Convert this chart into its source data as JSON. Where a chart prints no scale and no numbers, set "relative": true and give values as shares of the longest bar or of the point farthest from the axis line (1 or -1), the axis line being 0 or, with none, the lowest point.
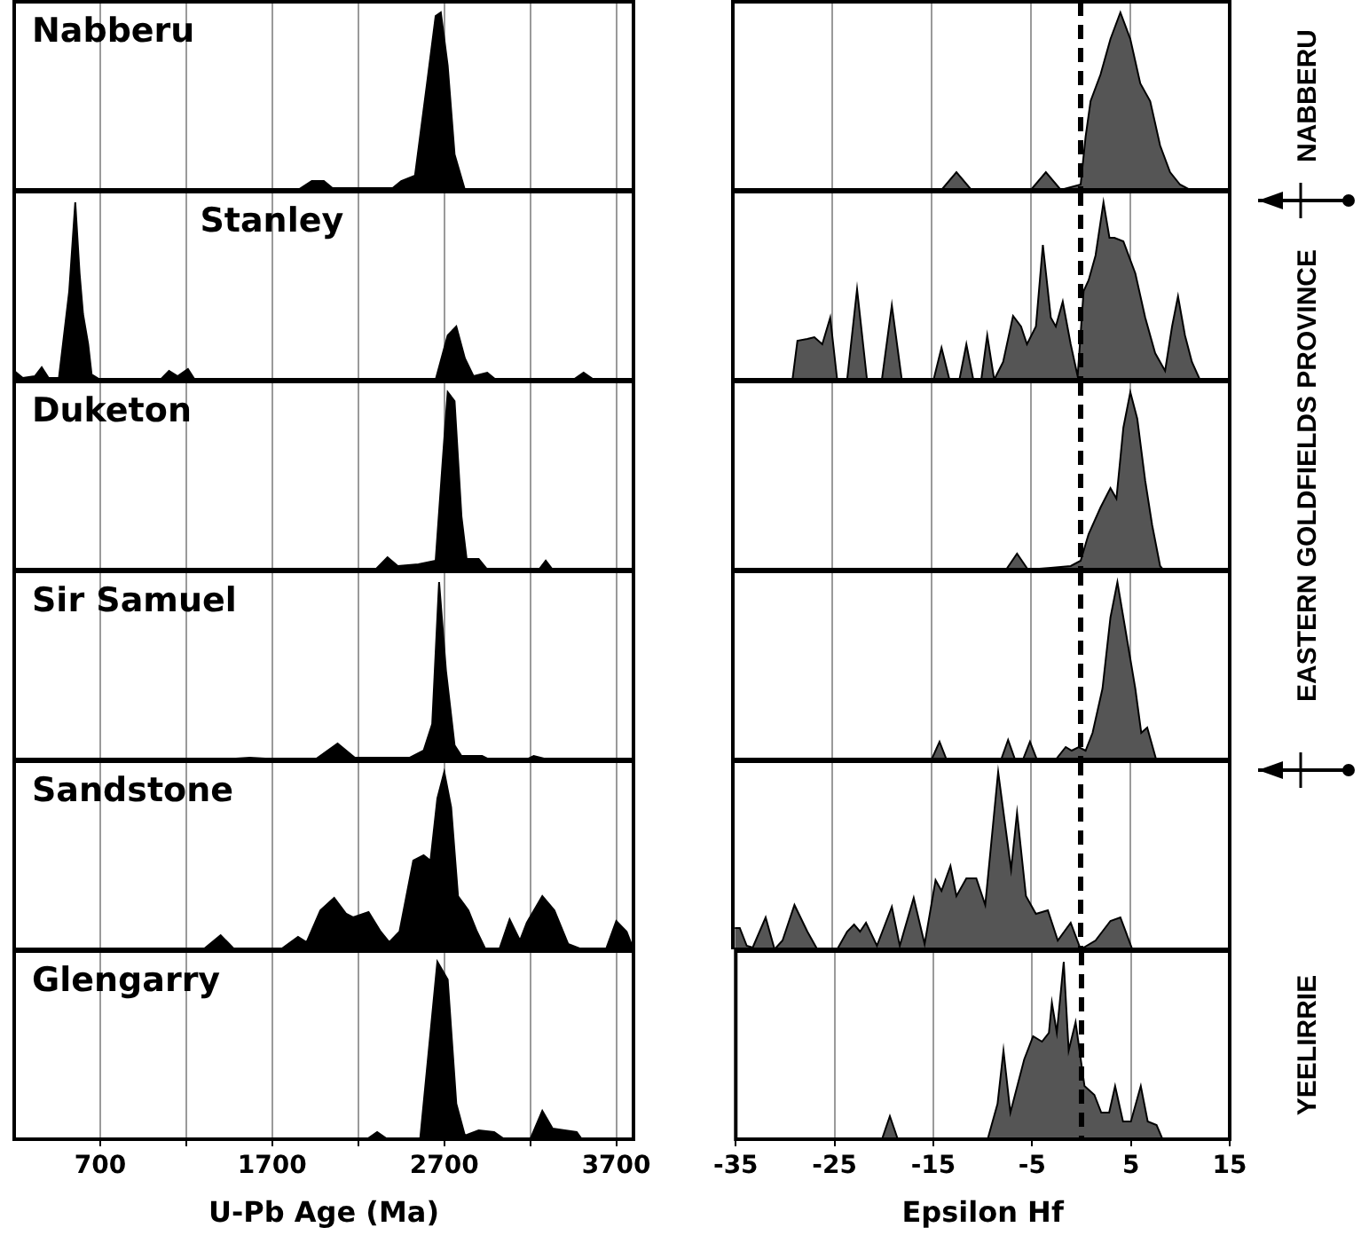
{
  "chart_data": [
    {
      "type": "area",
      "title": "Nabberu",
      "x": [
        1850,
        1930,
        2000,
        2050,
        2400,
        2450,
        2530,
        2600,
        2650,
        2680,
        2720,
        2760,
        2820
      ],
      "series": [
        {
          "color": "#000000",
          "values": [
            0,
            0.05,
            0.05,
            0.01,
            0.01,
            0.05,
            0.08,
            0.6,
            0.98,
            1,
            0.7,
            0.2,
            0
          ]
        }
      ],
      "relative": true,
      "xlim": [
        200,
        3800
      ],
      "xticks": [
        700,
        {
          "value": 1200,
          "label": null
        },
        1700,
        {
          "value": 2200,
          "label": null
        },
        2700,
        {
          "value": 3200,
          "label": null
        },
        3700
      ],
      "grid": "x",
      "tick_labels": false
    },
    {
      "type": "area",
      "x": [
        -14,
        -12.5,
        -11,
        -5,
        -3.5,
        -2,
        0,
        0.5,
        1,
        2,
        3,
        4,
        5,
        6,
        7,
        8,
        9,
        10,
        11
      ],
      "series": [
        {
          "color": "#555555",
          "values": [
            0,
            0.1,
            0,
            0,
            0.1,
            0,
            0.03,
            0.3,
            0.5,
            0.65,
            0.85,
            1,
            0.85,
            0.6,
            0.5,
            0.25,
            0.1,
            0.03,
            0
          ]
        }
      ],
      "relative": true,
      "xlim": [
        -35,
        15
      ],
      "xticks": [
        -35,
        -25,
        -15,
        -5,
        5,
        15
      ],
      "grid": "x",
      "tick_labels": false,
      "ref_lines": [
        {
          "axis": "x",
          "value": 0,
          "color": "#000000",
          "line_style": "dashed"
        }
      ],
      "annotations": [
        "NABBERU"
      ]
    },
    {
      "type": "area",
      "title": "Stanley",
      "x": [
        200,
        250,
        320,
        360,
        400,
        460,
        520,
        555,
        580,
        600,
        630,
        650,
        700,
        1050,
        1100,
        1150,
        1210,
        1250,
        2650,
        2720,
        2770,
        2820,
        2870,
        2950,
        3000,
        3450,
        3510,
        3570
      ],
      "series": [
        {
          "color": "#000000",
          "values": [
            0.05,
            0.01,
            0.02,
            0.07,
            0.01,
            0.01,
            0.5,
            1,
            0.6,
            0.37,
            0.2,
            0.03,
            0,
            0,
            0.05,
            0.02,
            0.06,
            0,
            0,
            0.25,
            0.3,
            0.12,
            0.02,
            0.04,
            0,
            0,
            0.04,
            0
          ]
        }
      ],
      "relative": true,
      "xlim": [
        200,
        3800
      ],
      "xticks": [
        700,
        {
          "value": 1200,
          "label": null
        },
        1700,
        {
          "value": 2200,
          "label": null
        },
        2700,
        {
          "value": 3200,
          "label": null
        },
        3700
      ],
      "grid": "x",
      "tick_labels": false
    },
    {
      "type": "area",
      "x": [
        -29,
        -28.5,
        -27.5,
        -26.8,
        -26,
        -25.2,
        -24.5,
        -23.5,
        -22.5,
        -21.5,
        -20,
        -19,
        -18,
        -14.8,
        -14,
        -13.2,
        -12.2,
        -11.5,
        -10.8,
        -10,
        -9.4,
        -8.7,
        -7.8,
        -6.8,
        -6,
        -5.4,
        -4.5,
        -3.8,
        -3,
        -2.5,
        -1.8,
        -1,
        -0.3,
        0.3,
        0.8,
        1.5,
        2.3,
        2.9,
        3.4,
        4.3,
        5.5,
        6.5,
        7.5,
        8.5,
        9.2,
        9.8,
        10.5,
        11.2,
        12
      ],
      "series": [
        {
          "color": "#555555",
          "values": [
            0,
            0.22,
            0.23,
            0.24,
            0.2,
            0.35,
            0,
            0,
            0.51,
            0,
            0,
            0.42,
            0,
            0,
            0.18,
            0,
            0,
            0.2,
            0,
            0,
            0.25,
            0,
            0.1,
            0.36,
            0.3,
            0.2,
            0.3,
            0.76,
            0.35,
            0.3,
            0.44,
            0.2,
            0.02,
            0.5,
            0.56,
            0.7,
            1,
            0.8,
            0.8,
            0.78,
            0.6,
            0.35,
            0.15,
            0.05,
            0.3,
            0.47,
            0.25,
            0.1,
            0
          ]
        }
      ],
      "relative": true,
      "xlim": [
        -35,
        15
      ],
      "xticks": [
        -35,
        -25,
        -15,
        -5,
        5,
        15
      ],
      "grid": "x",
      "tick_labels": false,
      "ref_lines": [
        {
          "axis": "x",
          "value": 0,
          "color": "#000000",
          "line_style": "dashed"
        }
      ]
    },
    {
      "type": "area",
      "title": "Duketon",
      "x": [
        2300,
        2370,
        2430,
        2550,
        2650,
        2690,
        2720,
        2760,
        2800,
        2830,
        2900,
        2950,
        3250,
        3290,
        3330
      ],
      "series": [
        {
          "color": "#000000",
          "values": [
            0,
            0.07,
            0.02,
            0.03,
            0.05,
            0.6,
            1,
            0.95,
            0.3,
            0.06,
            0.06,
            0,
            0,
            0.05,
            0
          ]
        }
      ],
      "relative": true,
      "xlim": [
        200,
        3800
      ],
      "xticks": [
        700,
        {
          "value": 1200,
          "label": null
        },
        1700,
        {
          "value": 2200,
          "label": null
        },
        2700,
        {
          "value": 3200,
          "label": null
        },
        3700
      ],
      "grid": "x",
      "tick_labels": false
    },
    {
      "type": "area",
      "x": [
        -7.5,
        -6.4,
        -5.3,
        -3,
        -1,
        0,
        0.8,
        2,
        3,
        3.6,
        4.3,
        5,
        5.7,
        6.5,
        7.2,
        8,
        8.3
      ],
      "series": [
        {
          "color": "#555555",
          "values": [
            0,
            0.09,
            0,
            0.01,
            0.02,
            0.05,
            0.2,
            0.35,
            0.46,
            0.4,
            0.8,
            1,
            0.85,
            0.5,
            0.25,
            0.02,
            0
          ]
        }
      ],
      "relative": true,
      "xlim": [
        -35,
        15
      ],
      "xticks": [
        -35,
        -25,
        -15,
        -5,
        5,
        15
      ],
      "grid": "x",
      "tick_labels": false,
      "ref_lines": [
        {
          "axis": "x",
          "value": 0,
          "color": "#000000",
          "line_style": "dashed"
        }
      ],
      "annotations": [
        "EASTERN GOLDFIELDS PROVINCE"
      ]
    },
    {
      "type": "area",
      "title": "Sir Samuel",
      "x": [
        1400,
        1570,
        1750,
        1950,
        2080,
        2180,
        2500,
        2580,
        2630,
        2670,
        2710,
        2760,
        2800,
        2920,
        2960,
        3180,
        3220,
        3300
      ],
      "series": [
        {
          "color": "#000000",
          "values": [
            0,
            0.01,
            0,
            0,
            0.09,
            0.01,
            0.01,
            0.05,
            0.2,
            1,
            0.5,
            0.08,
            0.02,
            0.02,
            0,
            0,
            0.02,
            0
          ]
        }
      ],
      "relative": true,
      "xlim": [
        200,
        3800
      ],
      "xticks": [
        700,
        {
          "value": 1200,
          "label": null
        },
        1700,
        {
          "value": 2200,
          "label": null
        },
        2700,
        {
          "value": 3200,
          "label": null
        },
        3700
      ],
      "grid": "x",
      "tick_labels": false
    },
    {
      "type": "area",
      "x": [
        -15,
        -14.2,
        -13.5,
        -8,
        -7.3,
        -6.6,
        -5.8,
        -5.1,
        -4.4,
        -2.5,
        -1.5,
        -0.9,
        -0.2,
        0.5,
        1.2,
        2.2,
        3,
        3.7,
        4.6,
        5.5,
        6.1,
        6.7,
        7.6
      ],
      "series": [
        {
          "color": "#555555",
          "values": [
            0,
            0.1,
            0,
            0,
            0.11,
            0,
            0,
            0.1,
            0,
            0,
            0.07,
            0.05,
            0.07,
            0.05,
            0.15,
            0.4,
            0.8,
            1,
            0.7,
            0.4,
            0.15,
            0.18,
            0
          ]
        }
      ],
      "relative": true,
      "xlim": [
        -35,
        15
      ],
      "xticks": [
        -35,
        -25,
        -15,
        -5,
        5,
        15
      ],
      "grid": "x",
      "tick_labels": false,
      "ref_lines": [
        {
          "axis": "x",
          "value": 0,
          "color": "#000000",
          "line_style": "dashed"
        }
      ]
    },
    {
      "type": "area",
      "title": "Sandstone",
      "x": [
        1300,
        1400,
        1480,
        1750,
        1850,
        1900,
        1980,
        2060,
        2130,
        2170,
        2260,
        2330,
        2380,
        2440,
        2520,
        2580,
        2620,
        2660,
        2700,
        2740,
        2780,
        2840,
        2890,
        2940,
        3020,
        3080,
        3140,
        3180,
        3270,
        3340,
        3420,
        3500,
        3640,
        3700,
        3760,
        3800
      ],
      "series": [
        {
          "color": "#000000",
          "values": [
            0,
            0.08,
            0,
            0,
            0.07,
            0.04,
            0.22,
            0.29,
            0.2,
            0.18,
            0.21,
            0.1,
            0.04,
            0.1,
            0.5,
            0.53,
            0.5,
            0.85,
            1,
            0.8,
            0.3,
            0.22,
            0.1,
            0,
            0,
            0.17,
            0.05,
            0.15,
            0.3,
            0.22,
            0.03,
            0,
            0,
            0.16,
            0.1,
            0
          ]
        }
      ],
      "relative": true,
      "xlim": [
        200,
        3800
      ],
      "xticks": [
        700,
        {
          "value": 1200,
          "label": null
        },
        1700,
        {
          "value": 2200,
          "label": null
        },
        2700,
        {
          "value": 3200,
          "label": null
        },
        3700
      ],
      "grid": "x",
      "tick_labels": false
    },
    {
      "type": "area",
      "x": [
        -34.8,
        -34.3,
        -33.6,
        -33,
        -31.7,
        -30.8,
        -30,
        -28.8,
        -27.5,
        -26.5,
        -24.5,
        -23.5,
        -22.8,
        -22.2,
        -21.6,
        -20.5,
        -19,
        -18.2,
        -16.8,
        -15.7,
        -14.6,
        -14,
        -13.1,
        -12.5,
        -11.5,
        -10.5,
        -9.6,
        -8.3,
        -7,
        -6.4,
        -5.5,
        -4.5,
        -3.3,
        -2.3,
        -1,
        0,
        1.5,
        3,
        4,
        5.2
      ],
      "series": [
        {
          "color": "#555555",
          "values": [
            0.12,
            0.12,
            0.02,
            0.01,
            0.18,
            0,
            0.05,
            0.25,
            0.1,
            0,
            0,
            0.1,
            0.14,
            0.1,
            0.15,
            0.02,
            0.24,
            0.02,
            0.29,
            0.03,
            0.39,
            0.33,
            0.47,
            0.3,
            0.4,
            0.4,
            0.25,
            1,
            0.45,
            0.77,
            0.3,
            0.2,
            0.22,
            0.05,
            0.15,
            0,
            0.05,
            0.16,
            0.18,
            0
          ]
        }
      ],
      "relative": true,
      "xlim": [
        -35,
        15
      ],
      "xticks": [
        -35,
        -25,
        -15,
        -5,
        5,
        15
      ],
      "grid": "x",
      "tick_labels": false,
      "ref_lines": [
        {
          "axis": "x",
          "value": 0,
          "color": "#000000",
          "line_style": "dashed"
        }
      ]
    },
    {
      "type": "area",
      "title": "Glengarry",
      "xlabel": "U-Pb Age (Ma)",
      "x": [
        2250,
        2310,
        2370,
        2560,
        2610,
        2660,
        2720,
        2770,
        2820,
        2900,
        2990,
        3050,
        3200,
        3270,
        3330,
        3400,
        3470,
        3500
      ],
      "series": [
        {
          "color": "#000000",
          "values": [
            0,
            0.04,
            0,
            0,
            0.5,
            1,
            0.9,
            0.2,
            0.02,
            0.05,
            0.04,
            0,
            0,
            0.16,
            0.06,
            0.05,
            0.04,
            0
          ]
        }
      ],
      "relative": true,
      "xlim": [
        200,
        3800
      ],
      "xticks": [
        700,
        {
          "value": 1200,
          "label": null
        },
        1700,
        {
          "value": 2200,
          "label": null
        },
        2700,
        {
          "value": 3200,
          "label": null
        },
        3700
      ],
      "grid": "x",
      "tick_labels": "x"
    },
    {
      "type": "area",
      "xlabel": "Epsilon Hf",
      "x": [
        -20.2,
        -19.4,
        -18.6,
        -9.5,
        -8.5,
        -7.9,
        -7.2,
        -6.5,
        -5.8,
        -4.9,
        -4,
        -3.3,
        -3,
        -2.5,
        -1.8,
        -1.3,
        -0.6,
        0.3,
        1.3,
        2,
        2.8,
        3.4,
        4.2,
        5,
        6,
        6.7,
        7.6,
        8.2
      ],
      "series": [
        {
          "color": "#555555",
          "values": [
            0,
            0.13,
            0,
            0,
            0.2,
            0.5,
            0.15,
            0.3,
            0.45,
            0.58,
            0.55,
            0.6,
            0.77,
            0.6,
            1,
            0.5,
            0.66,
            0.3,
            0.25,
            0.15,
            0.15,
            0.3,
            0.1,
            0.1,
            0.3,
            0.1,
            0.08,
            0
          ]
        }
      ],
      "relative": true,
      "xlim": [
        -35,
        15
      ],
      "xticks": [
        -35,
        -25,
        -15,
        -5,
        5,
        15
      ],
      "grid": "x",
      "tick_labels": "x",
      "ref_lines": [
        {
          "axis": "x",
          "value": 0,
          "color": "#000000",
          "line_style": "dashed"
        }
      ],
      "annotations": [
        "YEELIRRIE"
      ]
    }
  ]
}
